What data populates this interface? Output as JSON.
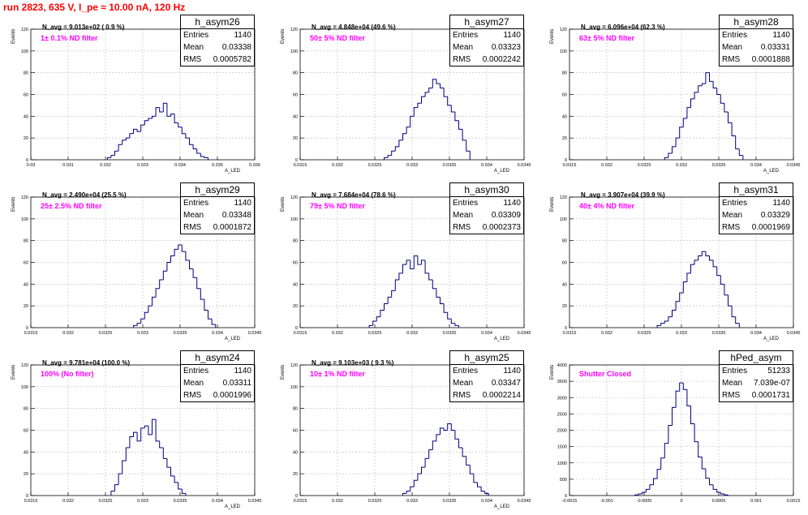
{
  "suptitle": "run 2823,   635 V, I_pe ≈ 10.00 nA, 120 Hz",
  "colors": {
    "histogram": "#000080",
    "filter_text": "#ff00ff",
    "title": "#ff0000",
    "grid": "#bbbbbb"
  },
  "chart_data": [
    {
      "type": "histogram",
      "name": "h_asym26",
      "entries": "1140",
      "mean": "0.03338",
      "rms": "0.0005782",
      "n_avg": "N_avg = 9.013e+02 ( 0.9 %)",
      "filter": "1± 0.1% ND filter",
      "xlabel": "A_LED",
      "ylabel": "Events",
      "xlim": [
        0.03,
        0.036
      ],
      "ylim": [
        0,
        120
      ],
      "grid": true,
      "xticks": [
        "0.03",
        "0.031",
        "0.032",
        "0.033",
        "0.034",
        "0.035",
        "0.036"
      ],
      "yticks": [
        "0",
        "20",
        "40",
        "60",
        "80",
        "100",
        "120"
      ],
      "bin_centers": [
        0.0321,
        0.0322,
        0.0323,
        0.0324,
        0.0325,
        0.0326,
        0.0327,
        0.0328,
        0.0329,
        0.033,
        0.0331,
        0.0332,
        0.0333,
        0.0334,
        0.0335,
        0.0336,
        0.0337,
        0.0338,
        0.0339,
        0.034,
        0.0341,
        0.0342,
        0.0343,
        0.0344,
        0.0345,
        0.0346,
        0.0347
      ],
      "counts": [
        2,
        4,
        8,
        14,
        18,
        20,
        24,
        28,
        26,
        32,
        36,
        38,
        40,
        48,
        44,
        52,
        40,
        42,
        34,
        30,
        24,
        20,
        14,
        10,
        6,
        3,
        2
      ]
    },
    {
      "type": "histogram",
      "name": "h_asym27",
      "entries": "1140",
      "mean": "0.03323",
      "rms": "0.0002242",
      "n_avg": "N_avg = 4.848e+04 (49.6 %)",
      "filter": "50± 5% ND filter",
      "xlabel": "A_LED",
      "ylabel": "Events",
      "xlim": [
        0.0315,
        0.0345
      ],
      "ylim": [
        0,
        120
      ],
      "grid": true,
      "xticks": [
        "0.0315",
        "0.032",
        "0.0325",
        "0.033",
        "0.0335",
        "0.034",
        "0.0345"
      ],
      "yticks": [
        "0",
        "20",
        "40",
        "60",
        "80",
        "100",
        "120"
      ],
      "bin_centers": [
        0.03265,
        0.0327,
        0.03275,
        0.0328,
        0.03285,
        0.0329,
        0.03295,
        0.033,
        0.03305,
        0.0331,
        0.03315,
        0.0332,
        0.03325,
        0.0333,
        0.03335,
        0.0334,
        0.03345,
        0.0335,
        0.03355,
        0.0336,
        0.03365,
        0.0337,
        0.03375
      ],
      "counts": [
        2,
        4,
        8,
        12,
        18,
        24,
        30,
        40,
        48,
        52,
        58,
        62,
        66,
        74,
        70,
        66,
        58,
        50,
        44,
        36,
        28,
        18,
        8
      ]
    },
    {
      "type": "histogram",
      "name": "h_asym28",
      "entries": "1140",
      "mean": "0.03331",
      "rms": "0.0001888",
      "n_avg": "N_avg = 6.096e+04 (62.3 %)",
      "filter": "63± 5% ND filter",
      "xlabel": "A_LED",
      "ylabel": "Events",
      "xlim": [
        0.0315,
        0.0345
      ],
      "ylim": [
        0,
        120
      ],
      "grid": true,
      "xticks": [
        "0.0315",
        "0.032",
        "0.0325",
        "0.033",
        "0.0335",
        "0.034",
        "0.0345"
      ],
      "yticks": [
        "0",
        "20",
        "40",
        "60",
        "80",
        "100",
        "120"
      ],
      "bin_centers": [
        0.0328,
        0.03285,
        0.0329,
        0.03295,
        0.033,
        0.03305,
        0.0331,
        0.03315,
        0.0332,
        0.03325,
        0.0333,
        0.03335,
        0.0334,
        0.03345,
        0.0335,
        0.03355,
        0.0336,
        0.03365,
        0.0337,
        0.03375,
        0.0338
      ],
      "counts": [
        2,
        6,
        12,
        20,
        30,
        38,
        48,
        56,
        62,
        68,
        70,
        80,
        72,
        66,
        60,
        52,
        44,
        34,
        22,
        10,
        4
      ]
    },
    {
      "type": "histogram",
      "name": "h_asym29",
      "entries": "1140",
      "mean": "0.03348",
      "rms": "0.0001872",
      "n_avg": "N_avg = 2.490e+04 (25.5 %)",
      "filter": "25± 2.5% ND filter",
      "xlabel": "A_LED",
      "ylabel": "Events",
      "xlim": [
        0.0315,
        0.0345
      ],
      "ylim": [
        0,
        120
      ],
      "grid": true,
      "xticks": [
        "0.0315",
        "0.032",
        "0.0325",
        "0.033",
        "0.0335",
        "0.034",
        "0.0345"
      ],
      "yticks": [
        "0",
        "20",
        "40",
        "60",
        "80",
        "100",
        "120"
      ],
      "bin_centers": [
        0.0329,
        0.03295,
        0.033,
        0.03305,
        0.0331,
        0.03315,
        0.0332,
        0.03325,
        0.0333,
        0.03335,
        0.0334,
        0.03345,
        0.0335,
        0.03355,
        0.0336,
        0.03365,
        0.0337,
        0.03375,
        0.0338,
        0.03385,
        0.0339,
        0.03395
      ],
      "counts": [
        2,
        4,
        8,
        14,
        20,
        28,
        36,
        44,
        52,
        60,
        66,
        72,
        76,
        70,
        62,
        54,
        46,
        36,
        26,
        16,
        8,
        3
      ]
    },
    {
      "type": "histogram",
      "name": "h_asym30",
      "entries": "1140",
      "mean": "0.03309",
      "rms": "0.0002373",
      "n_avg": "N_avg = 7.684e+04 (78.6 %)",
      "filter": "79± 5% ND filter",
      "xlabel": "A_LED",
      "ylabel": "Events",
      "xlim": [
        0.0315,
        0.0345
      ],
      "ylim": [
        0,
        120
      ],
      "grid": true,
      "xticks": [
        "0.0315",
        "0.032",
        "0.0325",
        "0.033",
        "0.0335",
        "0.034",
        "0.0345"
      ],
      "yticks": [
        "0",
        "20",
        "40",
        "60",
        "80",
        "100",
        "120"
      ],
      "bin_centers": [
        0.03245,
        0.0325,
        0.03255,
        0.0326,
        0.03265,
        0.0327,
        0.03275,
        0.0328,
        0.03285,
        0.0329,
        0.03295,
        0.033,
        0.03305,
        0.0331,
        0.03315,
        0.0332,
        0.03325,
        0.0333,
        0.03335,
        0.0334,
        0.03345,
        0.0335,
        0.03355,
        0.0336
      ],
      "counts": [
        2,
        6,
        10,
        16,
        22,
        28,
        34,
        44,
        50,
        58,
        62,
        54,
        66,
        58,
        62,
        50,
        44,
        36,
        28,
        22,
        14,
        8,
        4,
        2
      ]
    },
    {
      "type": "histogram",
      "name": "h_asym31",
      "entries": "1140",
      "mean": "0.03329",
      "rms": "0.0001969",
      "n_avg": "N_avg = 3.907e+04 (39.9 %)",
      "filter": "40± 4% ND filter",
      "xlabel": "A_LED",
      "ylabel": "Events",
      "xlim": [
        0.0315,
        0.0345
      ],
      "ylim": [
        0,
        120
      ],
      "grid": true,
      "xticks": [
        "0.0315",
        "0.032",
        "0.0325",
        "0.033",
        "0.0335",
        "0.034",
        "0.0345"
      ],
      "yticks": [
        "0",
        "20",
        "40",
        "60",
        "80",
        "100",
        "120"
      ],
      "bin_centers": [
        0.0327,
        0.03275,
        0.0328,
        0.03285,
        0.0329,
        0.03295,
        0.033,
        0.03305,
        0.0331,
        0.03315,
        0.0332,
        0.03325,
        0.0333,
        0.03335,
        0.0334,
        0.03345,
        0.0335,
        0.03355,
        0.0336,
        0.03365,
        0.0337,
        0.03375
      ],
      "counts": [
        2,
        4,
        6,
        10,
        16,
        24,
        32,
        42,
        50,
        58,
        62,
        66,
        70,
        66,
        62,
        56,
        48,
        40,
        30,
        20,
        10,
        4
      ]
    },
    {
      "type": "histogram",
      "name": "h_asym24",
      "entries": "1140",
      "mean": "0.03311",
      "rms": "0.0001996",
      "n_avg": "N_avg = 9.781e+04 (100.0 %)",
      "filter": "100% (No filter)",
      "xlabel": "A_LED",
      "ylabel": "Events",
      "xlim": [
        0.0315,
        0.0345
      ],
      "ylim": [
        0,
        120
      ],
      "grid": true,
      "xticks": [
        "0.0315",
        "0.032",
        "0.0325",
        "0.033",
        "0.0335",
        "0.034",
        "0.0345"
      ],
      "yticks": [
        "0",
        "20",
        "40",
        "60",
        "80",
        "100",
        "120"
      ],
      "bin_centers": [
        0.0326,
        0.03265,
        0.0327,
        0.03275,
        0.0328,
        0.03285,
        0.0329,
        0.03295,
        0.033,
        0.03305,
        0.0331,
        0.03315,
        0.0332,
        0.03325,
        0.0333,
        0.03335,
        0.0334,
        0.03345,
        0.0335,
        0.03355
      ],
      "counts": [
        4,
        10,
        20,
        32,
        44,
        54,
        58,
        50,
        62,
        64,
        56,
        70,
        50,
        44,
        34,
        26,
        18,
        12,
        6,
        2
      ]
    },
    {
      "type": "histogram",
      "name": "h_asym25",
      "entries": "1140",
      "mean": "0.03347",
      "rms": "0.0002214",
      "n_avg": "N_avg = 9.103e+03 ( 9.3 %)",
      "filter": "10± 1% ND filter",
      "xlabel": "A_LED",
      "ylabel": "Events",
      "xlim": [
        0.0315,
        0.0345
      ],
      "ylim": [
        0,
        120
      ],
      "grid": true,
      "xticks": [
        "0.0315",
        "0.032",
        "0.0325",
        "0.033",
        "0.0335",
        "0.034",
        "0.0345"
      ],
      "yticks": [
        "0",
        "20",
        "40",
        "60",
        "80",
        "100",
        "120"
      ],
      "bin_centers": [
        0.0329,
        0.03295,
        0.033,
        0.03305,
        0.0331,
        0.03315,
        0.0332,
        0.03325,
        0.0333,
        0.03335,
        0.0334,
        0.03345,
        0.0335,
        0.03355,
        0.0336,
        0.03365,
        0.0337,
        0.03375,
        0.0338,
        0.03385,
        0.0339,
        0.03395,
        0.034
      ],
      "counts": [
        2,
        4,
        8,
        14,
        20,
        26,
        34,
        42,
        50,
        56,
        62,
        60,
        66,
        60,
        52,
        44,
        36,
        28,
        20,
        12,
        8,
        4,
        2
      ]
    },
    {
      "type": "histogram",
      "name": "hPed_asym",
      "entries": "51233",
      "mean": "7.039e-07",
      "rms": "0.0001731",
      "n_avg": "",
      "filter": "Shutter Closed",
      "xlabel": "",
      "ylabel": "Events",
      "xlim": [
        -0.0015,
        0.0015
      ],
      "ylim": [
        0,
        4000
      ],
      "grid": true,
      "xticks": [
        "-0.0015",
        "-0.001",
        "-0.0005",
        "0",
        "0.0005",
        "0.001",
        "0.0015"
      ],
      "yticks": [
        "0",
        "500",
        "1000",
        "1500",
        "2000",
        "2500",
        "3000",
        "3500",
        "4000"
      ],
      "bin_centers": [
        -0.0006,
        -0.00055,
        -0.0005,
        -0.00045,
        -0.0004,
        -0.00035,
        -0.0003,
        -0.00025,
        -0.0002,
        -0.00015,
        -0.0001,
        -5e-05,
        0,
        5e-05,
        0.0001,
        0.00015,
        0.0002,
        0.00025,
        0.0003,
        0.00035,
        0.0004,
        0.00045,
        0.0005,
        0.00055,
        0.0006
      ],
      "counts": [
        20,
        50,
        100,
        190,
        330,
        520,
        800,
        1150,
        1600,
        2150,
        2700,
        3200,
        3450,
        3250,
        2750,
        2200,
        1650,
        1180,
        820,
        530,
        330,
        190,
        100,
        50,
        20
      ]
    }
  ]
}
